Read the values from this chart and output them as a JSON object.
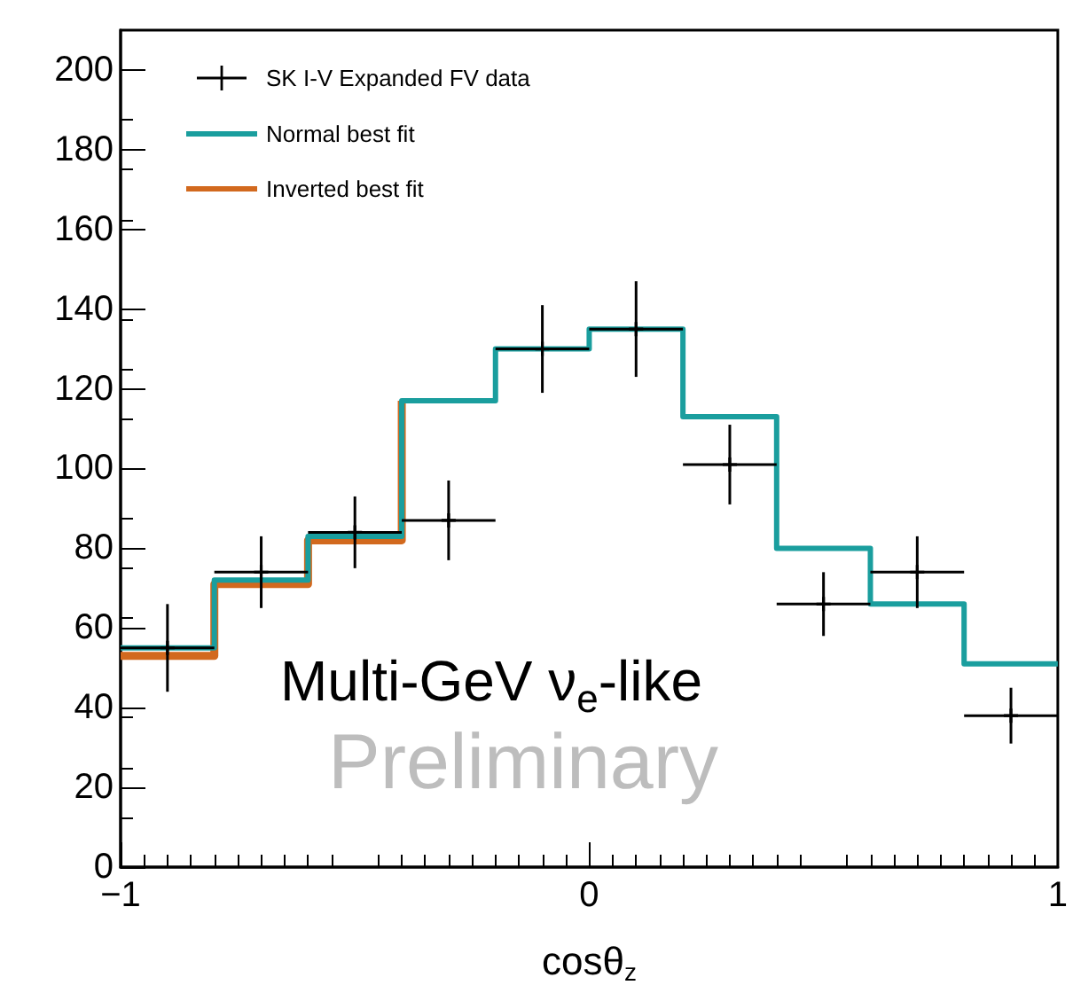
{
  "chart_data": {
    "type": "step",
    "xlabel": "cosθ$_{z}$",
    "annotations": [
      "Multi-GeV ν$_{e}$-like",
      "Preliminary"
    ],
    "xlim": [
      -1,
      1
    ],
    "xticks": [
      -1,
      0,
      1
    ],
    "ylim": [
      0,
      210
    ],
    "yticks": [
      0,
      20,
      40,
      60,
      80,
      100,
      120,
      140,
      160,
      180,
      200
    ],
    "grid": false,
    "legend": "top left",
    "series": [
      {
        "name": "SK I-V Expanded FV data",
        "type": "scatter",
        "marker": "cross",
        "color": "#000000",
        "x": [
          -0.9,
          -0.7,
          -0.5,
          -0.3,
          -0.1,
          0.1,
          0.3,
          0.5,
          0.7,
          0.9
        ],
        "values": [
          55,
          74,
          84,
          87,
          130,
          135,
          101,
          66,
          74,
          38
        ],
        "errors": [
          11,
          9,
          9,
          10,
          11,
          12,
          10,
          8,
          9,
          7
        ],
        "xerrors": [
          0.1,
          0.1,
          0.1,
          0.1,
          0.1,
          0.1,
          0.1,
          0.1,
          0.1,
          0.1
        ]
      },
      {
        "name": "Normal best fit",
        "color": "#1a9e9e",
        "x": [
          -1,
          -0.8,
          -0.6,
          -0.4,
          -0.2,
          0,
          0.2,
          0.4,
          0.6,
          0.8,
          1
        ],
        "values": [
          55,
          72,
          83,
          117,
          130,
          135,
          113,
          80,
          66,
          51,
          51
        ]
      },
      {
        "name": "Inverted best fit",
        "color": "#d2691e",
        "x": [
          -1,
          -0.8,
          -0.6,
          -0.4
        ],
        "values": [
          53,
          71,
          82,
          117
        ]
      }
    ]
  }
}
